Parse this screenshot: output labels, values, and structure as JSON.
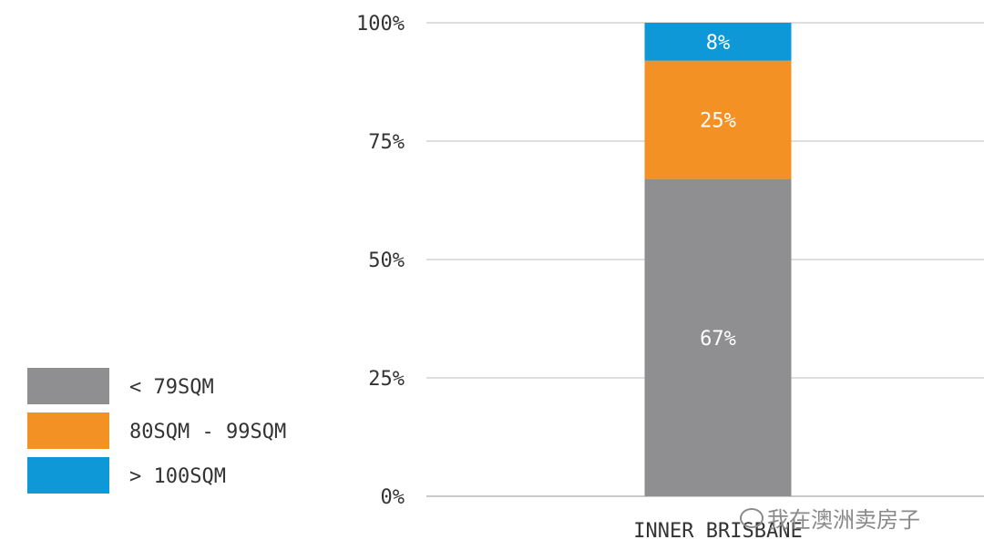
{
  "chart_data": {
    "type": "bar",
    "stacked": true,
    "categories": [
      "INNER BRISBANE"
    ],
    "series": [
      {
        "name": "< 79SQM",
        "color": "#8f8f92",
        "values": [
          67
        ],
        "labels": [
          "67%"
        ]
      },
      {
        "name": "80SQM - 99SQM",
        "color": "#f49124",
        "values": [
          25
        ],
        "labels": [
          "25%"
        ]
      },
      {
        "name": "> 100SQM",
        "color": "#0e98d8",
        "values": [
          8
        ],
        "labels": [
          "8%"
        ]
      }
    ],
    "ylim": [
      0,
      100
    ],
    "yticks": [
      0,
      25,
      50,
      75,
      100
    ],
    "ytick_labels": [
      "0%",
      "25%",
      "50%",
      "75%",
      "100%"
    ],
    "grid": true,
    "legend_position": "bottom-left"
  },
  "watermark": {
    "text": "我在澳洲卖房子",
    "icon": "wechat-icon"
  }
}
